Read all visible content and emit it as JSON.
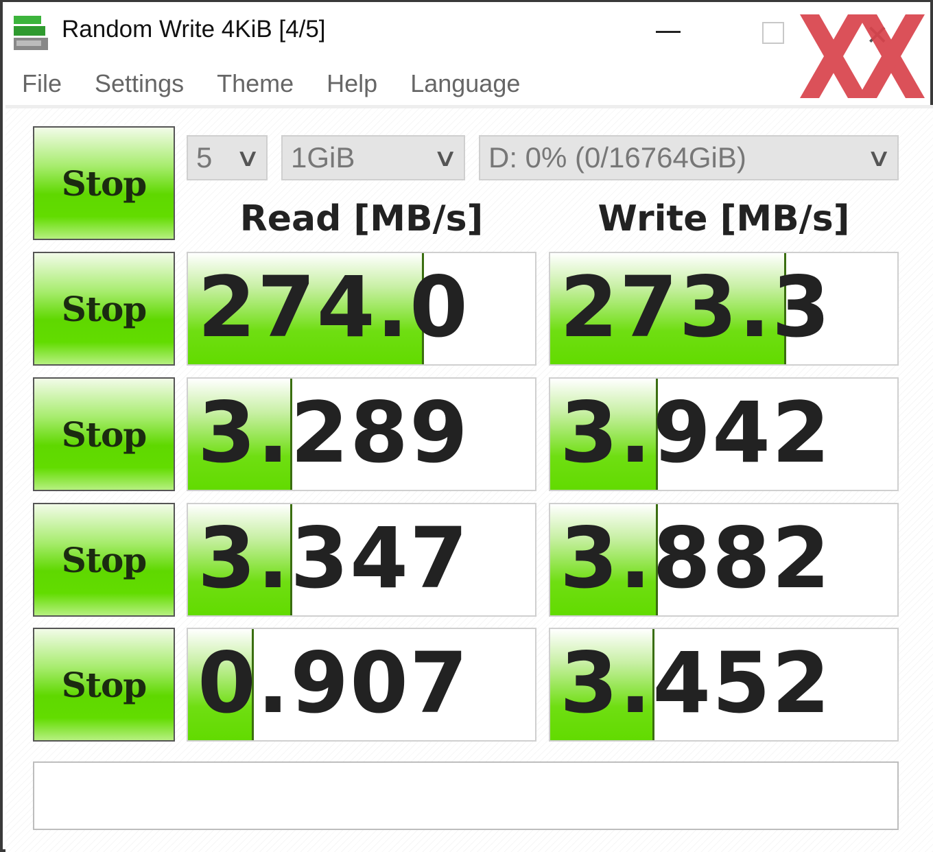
{
  "window": {
    "title": "Random Write 4KiB [4/5]"
  },
  "menu": [
    "File",
    "Settings",
    "Theme",
    "Help",
    "Language"
  ],
  "controls": {
    "all_button": "Stop",
    "count": "5",
    "size": "1GiB",
    "drive": "D: 0% (0/16764GiB)"
  },
  "headers": {
    "read": "Read [MB/s]",
    "write": "Write [MB/s]"
  },
  "rows": [
    {
      "button": "Stop",
      "read": "274.0",
      "read_level": 0.68,
      "write": "273.3",
      "write_level": 0.68
    },
    {
      "button": "Stop",
      "read": "3.289",
      "read_level": 0.3,
      "write": "3.942",
      "write_level": 0.31
    },
    {
      "button": "Stop",
      "read": "3.347",
      "read_level": 0.3,
      "write": "3.882",
      "write_level": 0.31
    },
    {
      "button": "Stop",
      "read": "0.907",
      "read_level": 0.19,
      "write": "3.452",
      "write_level": 0.3
    }
  ],
  "comment": "",
  "colors": {
    "accent_green": "#62db00",
    "watermark_red": "#d9434c"
  },
  "watermark": "XX"
}
